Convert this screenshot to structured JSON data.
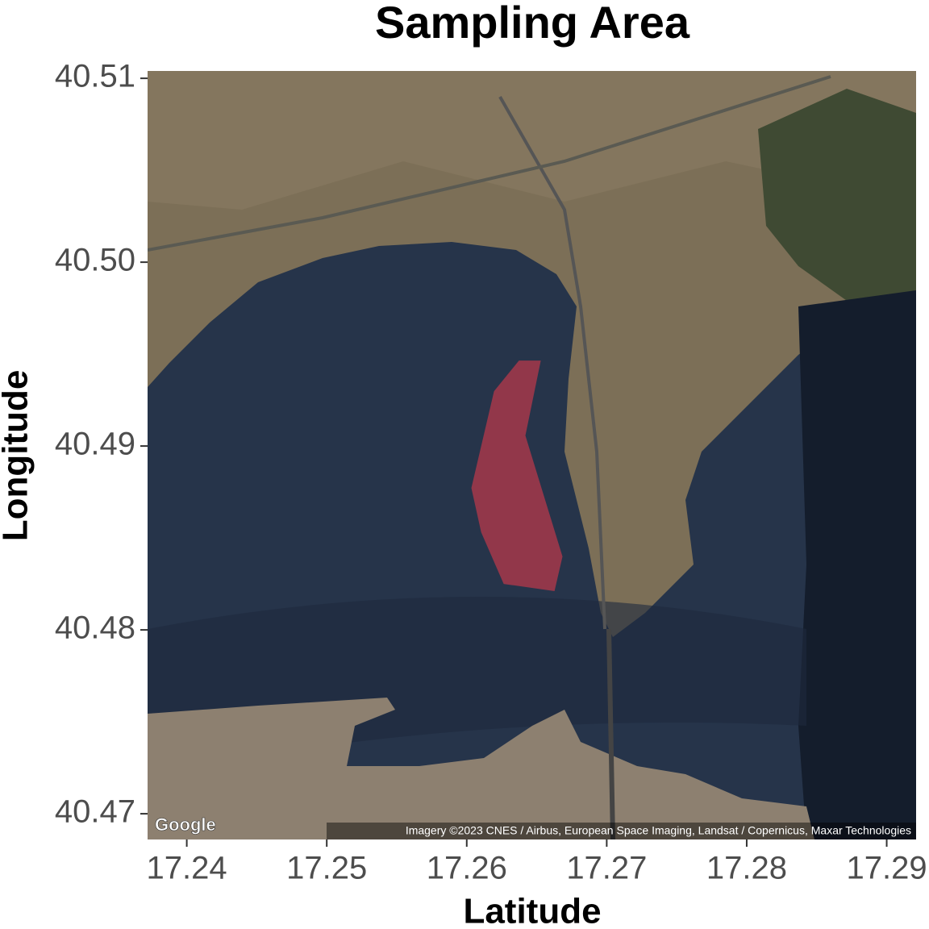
{
  "chart_data": {
    "type": "map",
    "title": "Sampling Area",
    "x_label": "Latitude",
    "y_label": "Longitude",
    "xlim": [
      17.2372,
      17.2921
    ],
    "ylim": [
      40.4686,
      40.5104
    ],
    "xticks": [
      17.24,
      17.25,
      17.26,
      17.27,
      17.28,
      17.29
    ],
    "yticks": [
      40.47,
      40.48,
      40.49,
      {
        "value": 40.5,
        "label": "40.50"
      },
      40.51
    ],
    "polygon": {
      "color": "#c0394a",
      "lon": [
        17.26373,
        17.26529,
        17.26419,
        17.26684,
        17.26627,
        17.26264,
        17.26103,
        17.26033,
        17.26195
      ],
      "lat": [
        40.49465,
        40.49465,
        40.49057,
        40.48399,
        40.48211,
        40.4825,
        40.48531,
        40.48772,
        40.49298
      ]
    },
    "logo": "Google",
    "attribution": "Imagery ©2023 CNES / Airbus, European Space Imaging, Landsat / Copernicus, Maxar Technologies"
  }
}
